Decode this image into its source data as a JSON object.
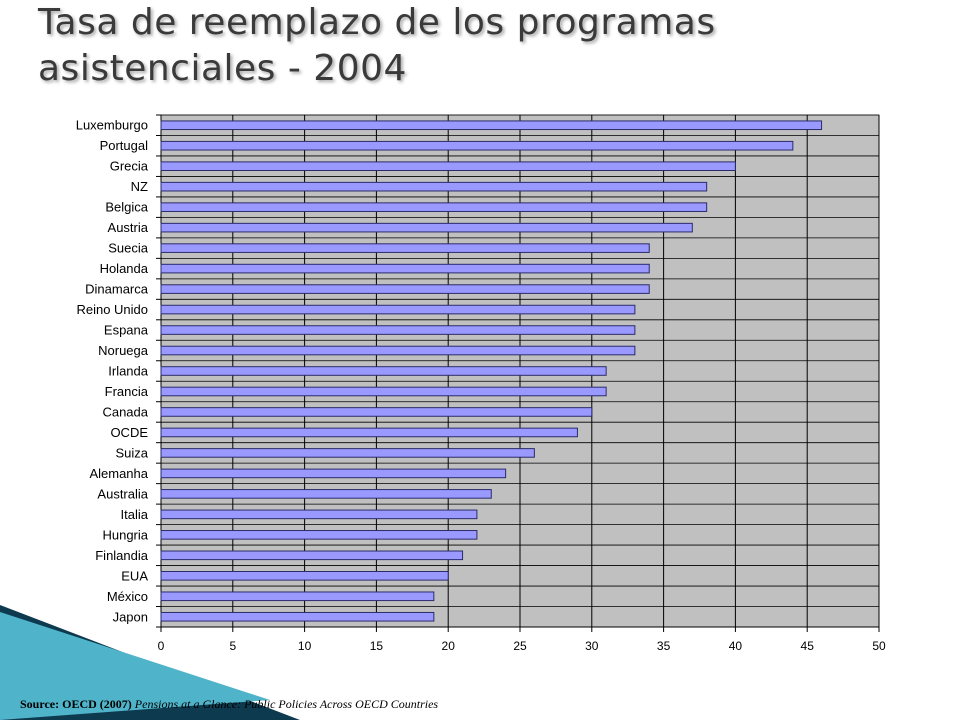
{
  "page": {
    "title": "Tasa de reemplazo de los programas\nasistenciales - 2004",
    "source_prefix": "Source: OECD (2007)",
    "source_italic": "Pensions at a Glance: Public Policies Across OECD Countries"
  },
  "colors": {
    "bar_fill": "#9999ff",
    "bar_stroke": "#2b2b6b",
    "plot_bg": "#c0c0c0",
    "grid": "#000000",
    "accent_wedge_dark": "#0d3a4f",
    "accent_wedge_light": "#4fb3c9"
  },
  "chart_data": {
    "type": "bar",
    "orientation": "horizontal",
    "categories": [
      "Luxemburgo",
      "Portugal",
      "Grecia",
      "NZ",
      "Belgica",
      "Austria",
      "Suecia",
      "Holanda",
      "Dinamarca",
      "Reino Unido",
      "Espana",
      "Noruega",
      "Irlanda",
      "Francia",
      "Canada",
      "OCDE",
      "Suiza",
      "Alemanha",
      "Australia",
      "Italia",
      "Hungria",
      "Finlandia",
      "EUA",
      "México",
      "Japon"
    ],
    "values": [
      46,
      44,
      40,
      38,
      38,
      37,
      34,
      34,
      34,
      33,
      33,
      33,
      31,
      31,
      30,
      29,
      26,
      24,
      23,
      22,
      22,
      21,
      20,
      19,
      19
    ],
    "xlim": [
      0,
      50
    ],
    "xticks": [
      0,
      5,
      10,
      15,
      20,
      25,
      30,
      35,
      40,
      45,
      50
    ],
    "grid": true,
    "legend": "none",
    "title": "",
    "xlabel": "",
    "ylabel": ""
  }
}
